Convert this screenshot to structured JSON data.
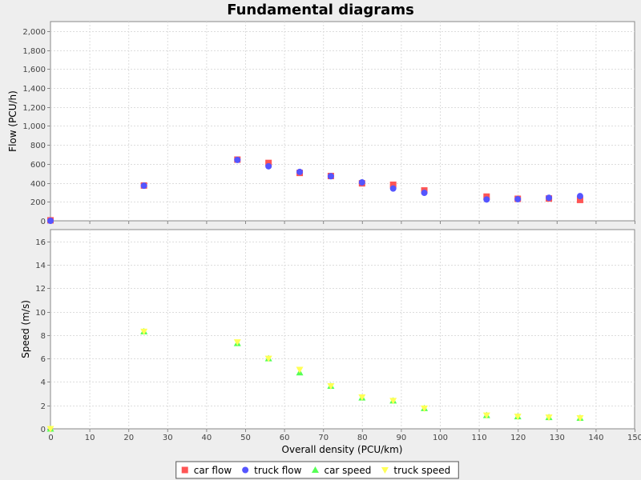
{
  "chart_data": {
    "type": "scatter",
    "title": "Fundamental diagrams",
    "xlabel": "Overall density (PCU/km)",
    "xlim": [
      0,
      150
    ],
    "x_ticks": [
      0,
      10,
      20,
      30,
      40,
      50,
      60,
      70,
      80,
      90,
      100,
      110,
      120,
      130,
      140,
      150
    ],
    "grid": true,
    "legend_position": "bottom",
    "subplots": [
      {
        "ylabel": "Flow (PCU/h)",
        "ylim": [
          0,
          2100
        ],
        "y_ticks": [
          0,
          200,
          400,
          600,
          800,
          1000,
          1200,
          1400,
          1600,
          1800,
          2000
        ],
        "y_tick_labels": [
          "0",
          "200",
          "400",
          "600",
          "800",
          "1,000",
          "1,200",
          "1,400",
          "1,600",
          "1,800",
          "2,000"
        ],
        "series": [
          {
            "name": "car flow",
            "marker": "square",
            "color": "#ff5555",
            "points": [
              [
                0,
                5
              ],
              [
                24,
                372
              ],
              [
                48,
                645
              ],
              [
                56,
                610
              ],
              [
                64,
                505
              ],
              [
                72,
                472
              ],
              [
                80,
                395
              ],
              [
                88,
                380
              ],
              [
                96,
                320
              ],
              [
                112,
                255
              ],
              [
                120,
                232
              ],
              [
                128,
                235
              ],
              [
                136,
                220
              ]
            ]
          },
          {
            "name": "truck flow",
            "marker": "circle",
            "color": "#5555ff",
            "points": [
              [
                0,
                0
              ],
              [
                24,
                370
              ],
              [
                48,
                642
              ],
              [
                56,
                575
              ],
              [
                64,
                515
              ],
              [
                72,
                470
              ],
              [
                80,
                405
              ],
              [
                88,
                340
              ],
              [
                96,
                295
              ],
              [
                112,
                225
              ],
              [
                120,
                228
              ],
              [
                128,
                242
              ],
              [
                136,
                260
              ]
            ]
          }
        ]
      },
      {
        "ylabel": "Speed (m/s)",
        "ylim": [
          0,
          17
        ],
        "y_ticks": [
          0,
          2,
          4,
          6,
          8,
          10,
          12,
          14,
          16
        ],
        "y_tick_labels": [
          "0",
          "2",
          "4",
          "6",
          "8",
          "10",
          "12",
          "14",
          "16"
        ],
        "series": [
          {
            "name": "car speed",
            "marker": "triangle",
            "color": "#55ff55",
            "points": [
              [
                0,
                0
              ],
              [
                24,
                8.3
              ],
              [
                48,
                7.3
              ],
              [
                56,
                6.0
              ],
              [
                64,
                4.8
              ],
              [
                72,
                3.65
              ],
              [
                80,
                2.65
              ],
              [
                88,
                2.4
              ],
              [
                96,
                1.75
              ],
              [
                112,
                1.15
              ],
              [
                120,
                1.05
              ],
              [
                128,
                0.98
              ],
              [
                136,
                0.92
              ]
            ]
          },
          {
            "name": "truck speed",
            "marker": "triangle-down",
            "color": "#ffff55",
            "points": [
              [
                0,
                0
              ],
              [
                24,
                8.3
              ],
              [
                48,
                7.4
              ],
              [
                56,
                6.0
              ],
              [
                64,
                5.05
              ],
              [
                72,
                3.65
              ],
              [
                80,
                2.7
              ],
              [
                88,
                2.4
              ],
              [
                96,
                1.75
              ],
              [
                112,
                1.15
              ],
              [
                120,
                1.05
              ],
              [
                128,
                0.98
              ],
              [
                136,
                0.92
              ]
            ]
          }
        ]
      }
    ],
    "legend": [
      {
        "label": "car flow",
        "marker": "square",
        "color": "#ff5555"
      },
      {
        "label": "truck flow",
        "marker": "circle",
        "color": "#5555ff"
      },
      {
        "label": "car speed",
        "marker": "triangle",
        "color": "#55ff55"
      },
      {
        "label": "truck speed",
        "marker": "triangle-down",
        "color": "#ffff55"
      }
    ]
  }
}
